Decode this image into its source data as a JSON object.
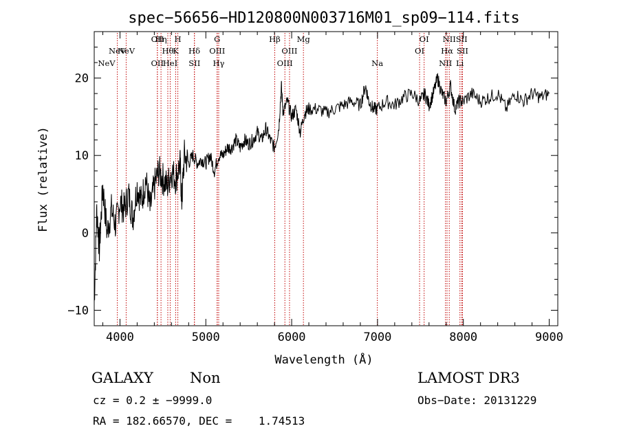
{
  "chart_data": {
    "type": "line",
    "title": "spec−56656−HD120800N003716M01_sp09−114.fits",
    "xlabel": "Wavelength (Å)",
    "ylabel": "Flux (relative)",
    "xlim": [
      3700,
      9100
    ],
    "ylim": [
      -12,
      26
    ],
    "xticks": [
      4000,
      5000,
      6000,
      7000,
      8000,
      9000
    ],
    "yticks": [
      -10,
      0,
      10,
      20
    ],
    "line_color": "#000000",
    "marker_color": "#c00000",
    "series": [
      {
        "x": [
          3700,
          3730,
          3760,
          3800,
          3850,
          3900,
          3950,
          4000,
          4050,
          4100,
          4150,
          4200,
          4250,
          4300,
          4350,
          4400,
          4450,
          4500,
          4550,
          4600,
          4650,
          4700,
          4720,
          4750,
          4800,
          4850,
          4900,
          4950,
          5000,
          5050,
          5100,
          5150,
          5200,
          5250,
          5300,
          5350,
          5400,
          5450,
          5500,
          5550,
          5600,
          5650,
          5700,
          5750,
          5800,
          5850,
          5880,
          5900,
          5950,
          6000,
          6050,
          6100,
          6150,
          6200,
          6300,
          6400,
          6500,
          6600,
          6700,
          6800,
          6860,
          6900,
          6950,
          7000,
          7100,
          7200,
          7300,
          7400,
          7500,
          7550,
          7600,
          7650,
          7700,
          7750,
          7800,
          7850,
          7900,
          7950,
          8000,
          8100,
          8200,
          8300,
          8400,
          8500,
          8600,
          8700,
          8800,
          8900,
          9000
        ],
        "y": [
          -9,
          3,
          -2,
          6,
          0,
          3,
          1,
          4,
          3,
          5,
          2,
          6,
          4,
          7,
          3,
          6,
          8,
          7,
          6,
          8,
          7,
          9,
          4,
          10,
          9,
          10,
          9,
          9.5,
          9,
          10,
          8,
          10,
          10,
          11,
          11,
          12,
          11,
          12,
          11.5,
          12,
          13,
          12,
          13.5,
          12,
          11,
          13.5,
          19,
          15.5,
          17,
          15,
          16,
          13,
          15.5,
          16,
          16,
          15.5,
          16,
          16.5,
          17,
          16.5,
          19,
          17,
          16,
          16,
          17,
          16.5,
          17.5,
          18,
          17,
          18,
          16.5,
          18,
          20,
          18,
          17,
          19,
          16,
          17,
          17,
          18,
          17,
          17.5,
          18,
          16,
          18,
          17,
          18,
          17.5,
          18
        ]
      }
    ],
    "line_markers": [
      {
        "name": "NeV",
        "x": 3426,
        "row": 2
      },
      {
        "name": "NeV",
        "x": 3969,
        "row": 1
      },
      {
        "name": "NeV",
        "x": 4072,
        "row": 1
      },
      {
        "name": "OII",
        "x": 4436,
        "row": 0
      },
      {
        "name": "Hη",
        "x": 4478,
        "row": 0
      },
      {
        "name": "H",
        "x": 4674,
        "row": 0
      },
      {
        "name": "Hθ",
        "x": 4557,
        "row": 1
      },
      {
        "name": "K",
        "x": 4649,
        "row": 1
      },
      {
        "name": "Hδ",
        "x": 4866,
        "row": 1
      },
      {
        "name": "OII",
        "x": 4435,
        "row": 2
      },
      {
        "name": "HeI",
        "x": 4585,
        "row": 2
      },
      {
        "name": "SII",
        "x": 4868,
        "row": 2
      },
      {
        "name": "G",
        "x": 5132,
        "row": 0
      },
      {
        "name": "OIII",
        "x": 5132,
        "row": 1
      },
      {
        "name": "Hγ",
        "x": 5150,
        "row": 2
      },
      {
        "name": "Hβ",
        "x": 5803,
        "row": 0
      },
      {
        "name": "OIII",
        "x": 5975,
        "row": 1
      },
      {
        "name": "OIII",
        "x": 5921,
        "row": 2
      },
      {
        "name": "Mg",
        "x": 6137,
        "row": 0
      },
      {
        "name": "Na",
        "x": 6998,
        "row": 2
      },
      {
        "name": "OI",
        "x": 7543,
        "row": 0
      },
      {
        "name": "OI",
        "x": 7490,
        "row": 1
      },
      {
        "name": "NII",
        "x": 7836,
        "row": 0
      },
      {
        "name": "Hα",
        "x": 7810,
        "row": 1
      },
      {
        "name": "NII",
        "x": 7792,
        "row": 2
      },
      {
        "name": "SII",
        "x": 7980,
        "row": 0
      },
      {
        "name": "SII",
        "x": 7990,
        "row": 1
      },
      {
        "name": "Li",
        "x": 7960,
        "row": 2
      }
    ]
  },
  "info": {
    "classification": "GALAXY",
    "subclass": "Non",
    "survey": "LAMOST DR3",
    "cz": "cz = 0.2 ± −9999.0",
    "obs_date": "Obs−Date: 20131229",
    "radec": "RA = 182.66570, DEC =    1.74513"
  }
}
